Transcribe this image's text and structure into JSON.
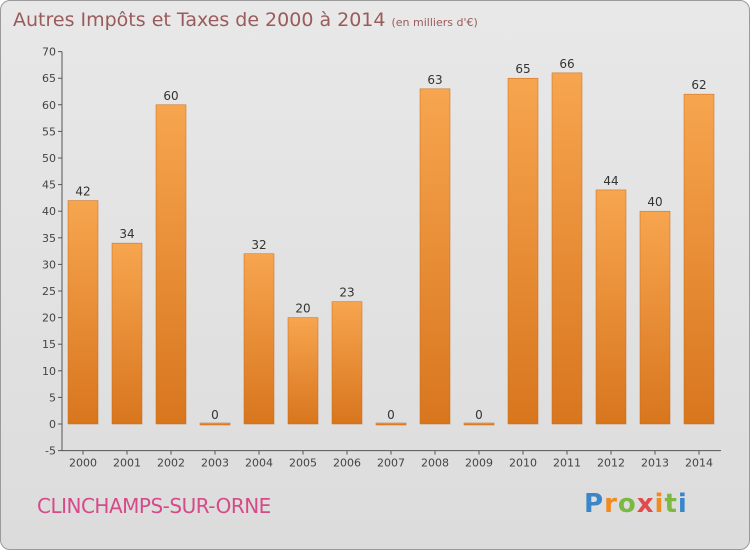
{
  "header": {
    "title": "Autres Impôts et Taxes de 2000 à 2014",
    "unit": "(en milliers d'€)"
  },
  "footer": {
    "commune": "CLINCHAMPS-SUR-ORNE",
    "logo": "Proxiti"
  },
  "colors": {
    "bar_light": "#f7a54f",
    "bar_dark": "#d8761e",
    "axis": "#555555",
    "title": "#9a5b5b",
    "commune": "#d64a8a"
  },
  "chart_data": {
    "type": "bar",
    "title": "Autres Impôts et Taxes de 2000 à 2014",
    "subtitle": "(en milliers d'€)",
    "categories": [
      "2000",
      "2001",
      "2002",
      "2003",
      "2004",
      "2005",
      "2006",
      "2007",
      "2008",
      "2009",
      "2010",
      "2011",
      "2012",
      "2013",
      "2014"
    ],
    "values": [
      42,
      34,
      60,
      0,
      32,
      20,
      23,
      0,
      63,
      0,
      65,
      66,
      44,
      40,
      62
    ],
    "xlabel": "",
    "ylabel": "",
    "ylim": [
      -5,
      70
    ],
    "yticks": [
      -5,
      0,
      5,
      10,
      15,
      20,
      25,
      30,
      35,
      40,
      45,
      50,
      55,
      60,
      65,
      70
    ],
    "grid": false,
    "legend": "none"
  }
}
